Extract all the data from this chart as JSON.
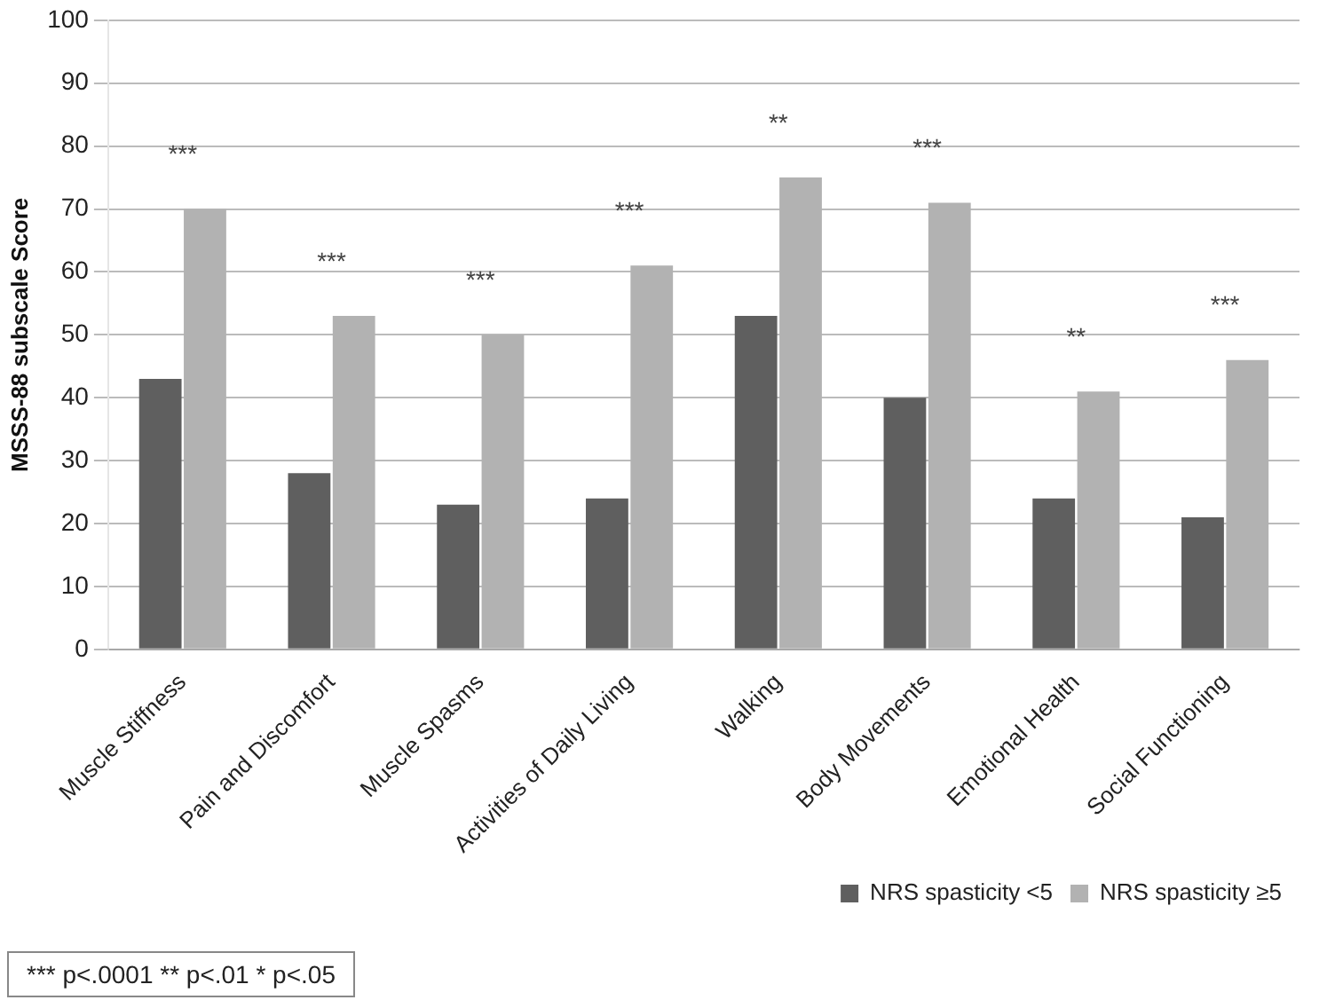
{
  "chart_data": {
    "type": "bar",
    "ylabel": "MSSS-88 subscale Score",
    "categories": [
      "Muscle Stiffness",
      "Pain and Discomfort",
      "Muscle Spasms",
      "Activities of Daily Living",
      "Walking",
      "Body Movements",
      "Emotional Health",
      "Social Functioning"
    ],
    "series": [
      {
        "name": "NRS spasticity <5",
        "color": "#5f5f5f",
        "values": [
          43,
          28,
          23,
          24,
          53,
          40,
          24,
          21
        ]
      },
      {
        "name": "NRS spasticity ≥5",
        "color": "#b2b2b2",
        "values": [
          70,
          53,
          50,
          61,
          75,
          71,
          41,
          46
        ]
      }
    ],
    "ylim": [
      0,
      100
    ],
    "yticks": [
      0,
      10,
      20,
      30,
      40,
      50,
      60,
      70,
      80,
      90,
      100
    ],
    "grid": "y",
    "legend": "bottom right",
    "annotations": [
      "***",
      "***",
      "***",
      "***",
      "**",
      "***",
      "**",
      "***",
      "*** p<.0001  ** p<.01  * p<.05"
    ]
  }
}
